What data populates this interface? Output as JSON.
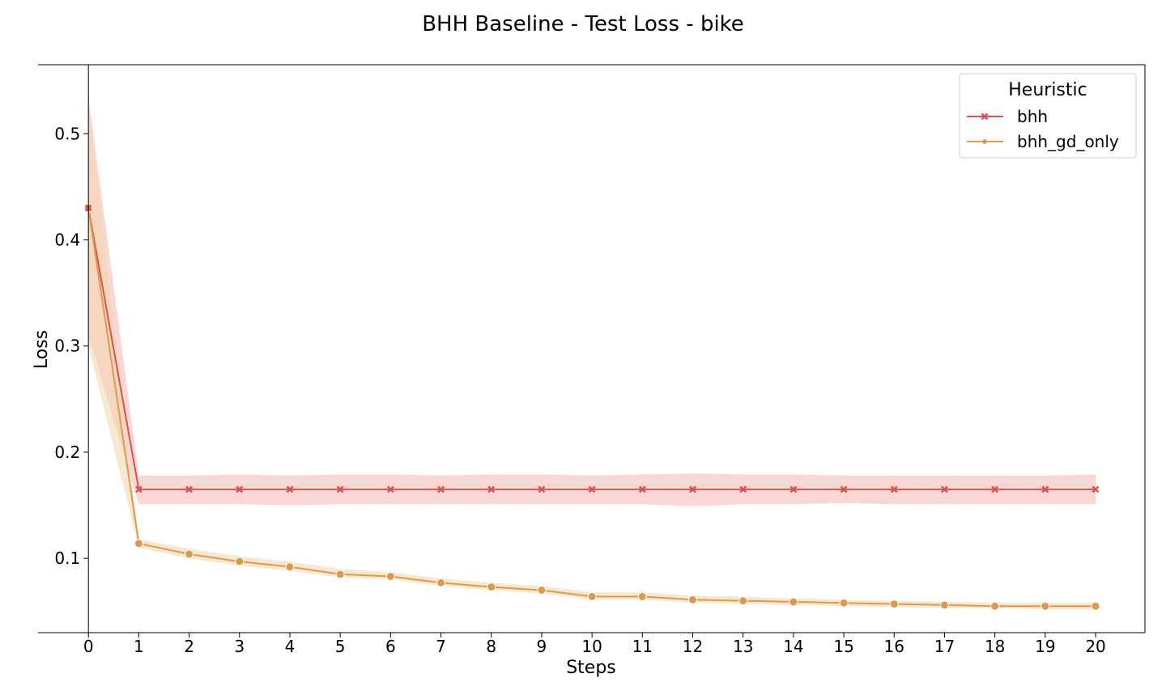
{
  "chart_data": {
    "type": "line",
    "title": "BHH Baseline - Test Loss - bike",
    "xlabel": "Steps",
    "ylabel": "Loss",
    "x": [
      0,
      1,
      2,
      3,
      4,
      5,
      6,
      7,
      8,
      9,
      10,
      11,
      12,
      13,
      14,
      15,
      16,
      17,
      18,
      19,
      20
    ],
    "xlim": [
      -1,
      20.98
    ],
    "ylim": [
      0.03,
      0.565
    ],
    "yticks": [
      0.1,
      0.2,
      0.3,
      0.4,
      0.5
    ],
    "yticklabels": [
      "0.1",
      "0.2",
      "0.3",
      "0.4",
      "0.5"
    ],
    "grid": false,
    "legend": {
      "title": "Heuristic",
      "placement": "top-right"
    },
    "series": [
      {
        "name": "bhh",
        "color": "#d9534f",
        "marker": "x",
        "values": [
          0.43,
          0.165,
          0.165,
          0.165,
          0.165,
          0.165,
          0.165,
          0.165,
          0.165,
          0.165,
          0.165,
          0.165,
          0.165,
          0.165,
          0.165,
          0.165,
          0.165,
          0.165,
          0.165,
          0.165,
          0.165
        ],
        "ci_low": [
          0.31,
          0.151,
          0.151,
          0.151,
          0.15,
          0.151,
          0.151,
          0.151,
          0.151,
          0.151,
          0.151,
          0.151,
          0.149,
          0.151,
          0.151,
          0.152,
          0.151,
          0.151,
          0.151,
          0.151,
          0.151
        ],
        "ci_high": [
          0.535,
          0.178,
          0.178,
          0.179,
          0.178,
          0.179,
          0.179,
          0.178,
          0.179,
          0.179,
          0.178,
          0.179,
          0.18,
          0.179,
          0.179,
          0.178,
          0.178,
          0.178,
          0.178,
          0.178,
          0.179
        ],
        "band_color": "#f3b6b3"
      },
      {
        "name": "bhh_gd_only",
        "color": "#dd9a4f",
        "marker": "o",
        "values": [
          0.43,
          0.114,
          0.104,
          0.097,
          0.092,
          0.085,
          0.083,
          0.077,
          0.073,
          0.07,
          0.064,
          0.064,
          0.061,
          0.06,
          0.059,
          0.058,
          0.057,
          0.056,
          0.055,
          0.055,
          0.055
        ],
        "ci_low": [
          0.3,
          0.11,
          0.1,
          0.093,
          0.088,
          0.082,
          0.08,
          0.074,
          0.07,
          0.067,
          0.061,
          0.061,
          0.058,
          0.057,
          0.056,
          0.055,
          0.054,
          0.053,
          0.053,
          0.052,
          0.052
        ],
        "ci_high": [
          0.525,
          0.118,
          0.109,
          0.102,
          0.097,
          0.09,
          0.087,
          0.081,
          0.077,
          0.074,
          0.068,
          0.068,
          0.065,
          0.064,
          0.062,
          0.061,
          0.06,
          0.059,
          0.058,
          0.058,
          0.058
        ],
        "band_color": "#f2d5ac"
      }
    ]
  }
}
